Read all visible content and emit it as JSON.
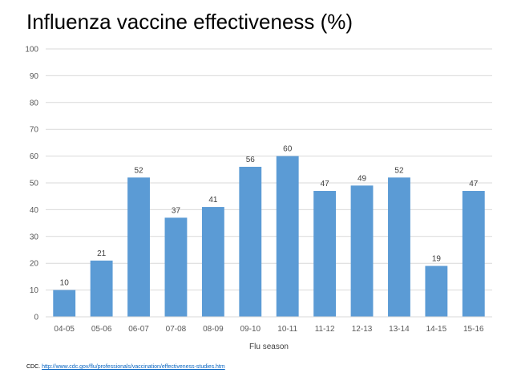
{
  "chart_data": {
    "type": "bar",
    "title": "Influenza vaccine effectiveness (%)",
    "xlabel": "Flu season",
    "ylabel": "",
    "ylim": [
      0,
      100
    ],
    "yticks": [
      0,
      10,
      20,
      30,
      40,
      50,
      60,
      70,
      80,
      90,
      100
    ],
    "grid": true,
    "categories": [
      "04-05",
      "05-06",
      "06-07",
      "07-08",
      "08-09",
      "09-10",
      "10-11",
      "11-12",
      "12-13",
      "13-14",
      "14-15",
      "15-16"
    ],
    "values": [
      10,
      21,
      52,
      37,
      41,
      56,
      60,
      47,
      49,
      52,
      19,
      47
    ],
    "bar_color": "#5b9bd5",
    "grid_color": "#d9d9d9"
  },
  "source": {
    "prefix": "CDC. ",
    "link_text": "http://www.cdc.gov/flu/professionals/vaccination/effectiveness-studies.htm"
  }
}
